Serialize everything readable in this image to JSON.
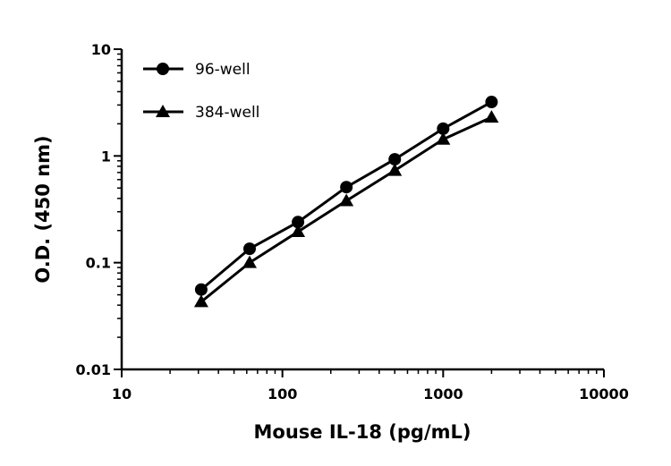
{
  "chart_data": {
    "type": "line",
    "title": "",
    "xlabel": "Mouse IL-18 (pg/mL)",
    "ylabel": "O.D. (450 nm)",
    "xscale": "log",
    "yscale": "log",
    "xlim": [
      10,
      10000
    ],
    "ylim": [
      0.01,
      10
    ],
    "xticks": [
      "10",
      "100",
      "1000",
      "10000"
    ],
    "yticks": [
      "0.01",
      "0.1",
      "1",
      "10"
    ],
    "grid": false,
    "legend_position": "top-left",
    "x": [
      31.25,
      62.5,
      125,
      250,
      500,
      1000,
      2000
    ],
    "series": [
      {
        "name": "96-well",
        "marker": "circle",
        "color": "#000000",
        "values": [
          0.056,
          0.135,
          0.24,
          0.51,
          0.93,
          1.8,
          3.2
        ]
      },
      {
        "name": "384-well",
        "marker": "triangle",
        "color": "#000000",
        "values": [
          0.043,
          0.1,
          0.195,
          0.38,
          0.73,
          1.43,
          2.3
        ]
      }
    ]
  }
}
